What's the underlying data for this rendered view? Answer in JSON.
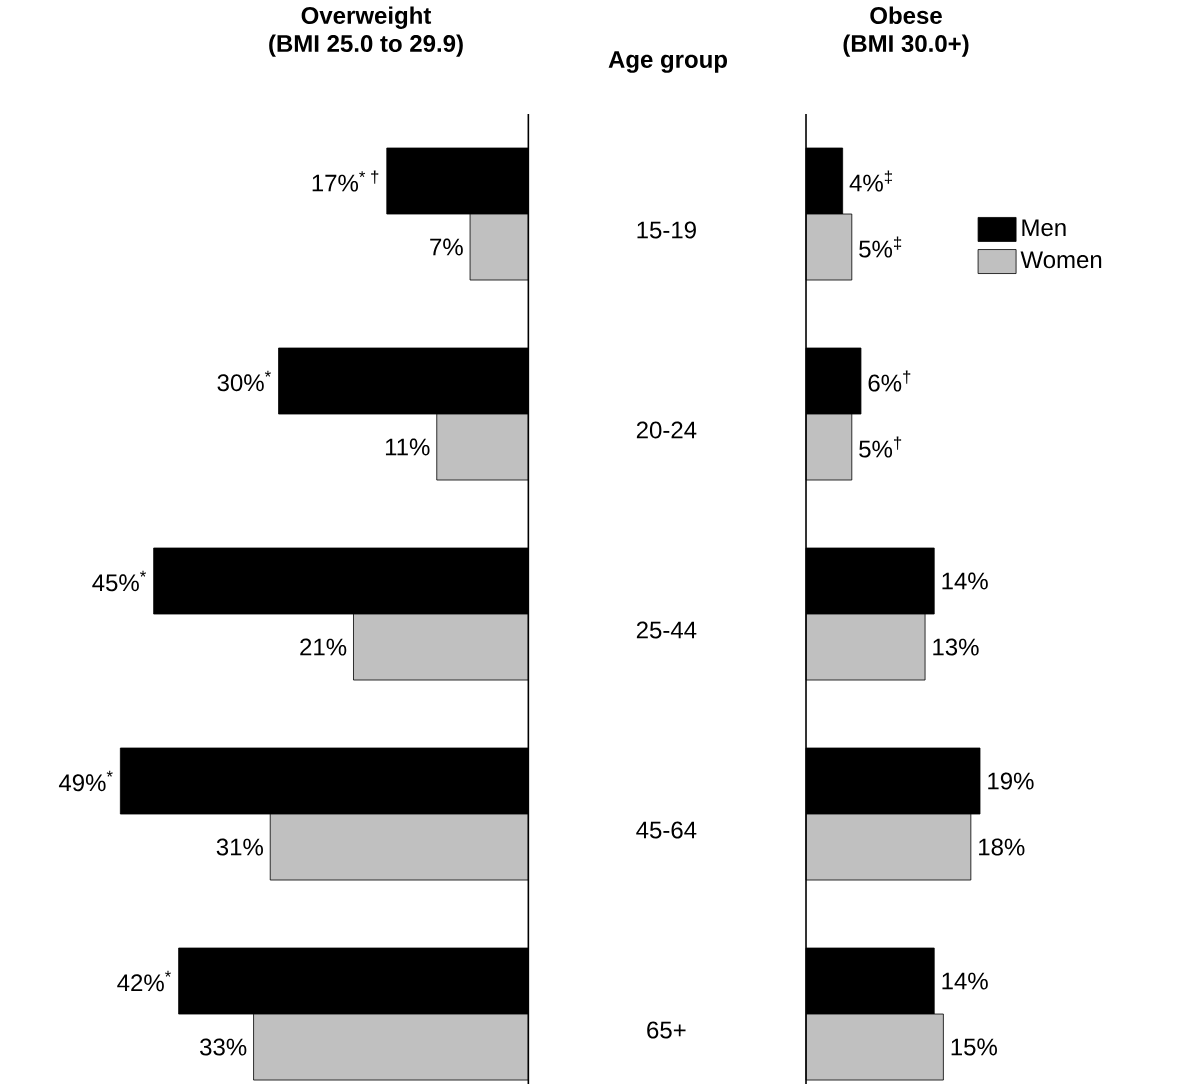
{
  "chart_data": [
    {
      "type": "bar",
      "orientation": "horizontal",
      "title": "Overweight",
      "subtitle": "(BMI 25.0 to 29.9)",
      "ylabel": "Age group",
      "categories": [
        "15-19",
        "20-24",
        "25-44",
        "45-64",
        "65+"
      ],
      "series": [
        {
          "color": "#000000",
          "values": [
            17,
            30,
            45,
            49,
            42
          ],
          "value_labels": [
            "17%$^{* †}$",
            "30%$^{*}$",
            "45%$^{*}$",
            "49%$^{*}$",
            "42%$^{*}$"
          ]
        },
        {
          "color": "#c0c0c0",
          "values": [
            7,
            11,
            21,
            31,
            33
          ],
          "value_labels": [
            "7%",
            "11%",
            "21%",
            "31%",
            "33%"
          ]
        }
      ],
      "tick_labels": "y"
    },
    {
      "type": "bar",
      "orientation": "horizontal",
      "title": "Obese",
      "subtitle": "(BMI 30.0+)",
      "categories": [
        null,
        null,
        null,
        null,
        null
      ],
      "series": [
        {
          "name": "Men",
          "color": "#000000",
          "values": [
            4,
            6,
            14,
            19,
            14
          ],
          "value_labels": [
            "4%$^{‡}$",
            "6%$^{†}$",
            "14%",
            "19%",
            "14%"
          ]
        },
        {
          "name": "Women",
          "color": "#c0c0c0",
          "values": [
            5,
            5,
            13,
            18,
            15
          ],
          "value_labels": [
            "5%$^{‡}$",
            "5%$^{†}$",
            "13%",
            "18%",
            "15%"
          ]
        }
      ],
      "tick_labels": false,
      "legend": "top right"
    }
  ]
}
